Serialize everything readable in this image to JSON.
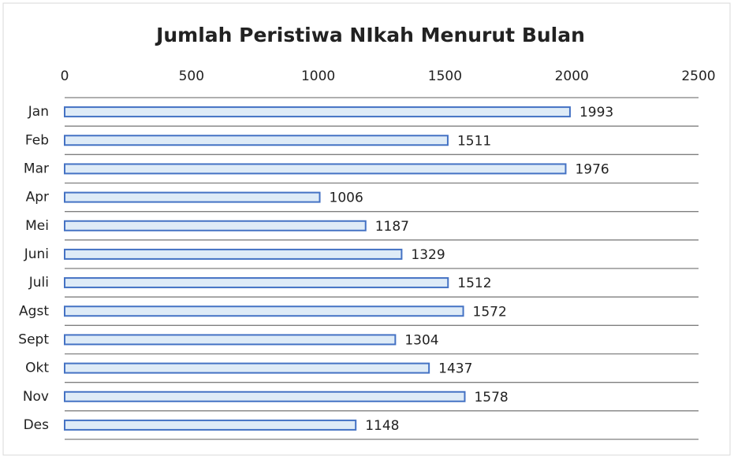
{
  "chart_data": {
    "type": "hbar",
    "title": "Jumlah Peristiwa NIkah Menurut Bulan",
    "categories": [
      "Jan",
      "Feb",
      "Mar",
      "Apr",
      "Mei",
      "Juni",
      "Juli",
      "Agst",
      "Sept",
      "Okt",
      "Nov",
      "Des"
    ],
    "values": [
      1993,
      1511,
      1976,
      1006,
      1187,
      1329,
      1512,
      1572,
      1304,
      1437,
      1578,
      1148
    ],
    "color": "#deebf7",
    "edge_color": "#4472c4",
    "xlim": [
      0,
      2500
    ],
    "xticks": [
      0,
      500,
      1000,
      1500,
      2000,
      2500
    ],
    "grid": false
  }
}
